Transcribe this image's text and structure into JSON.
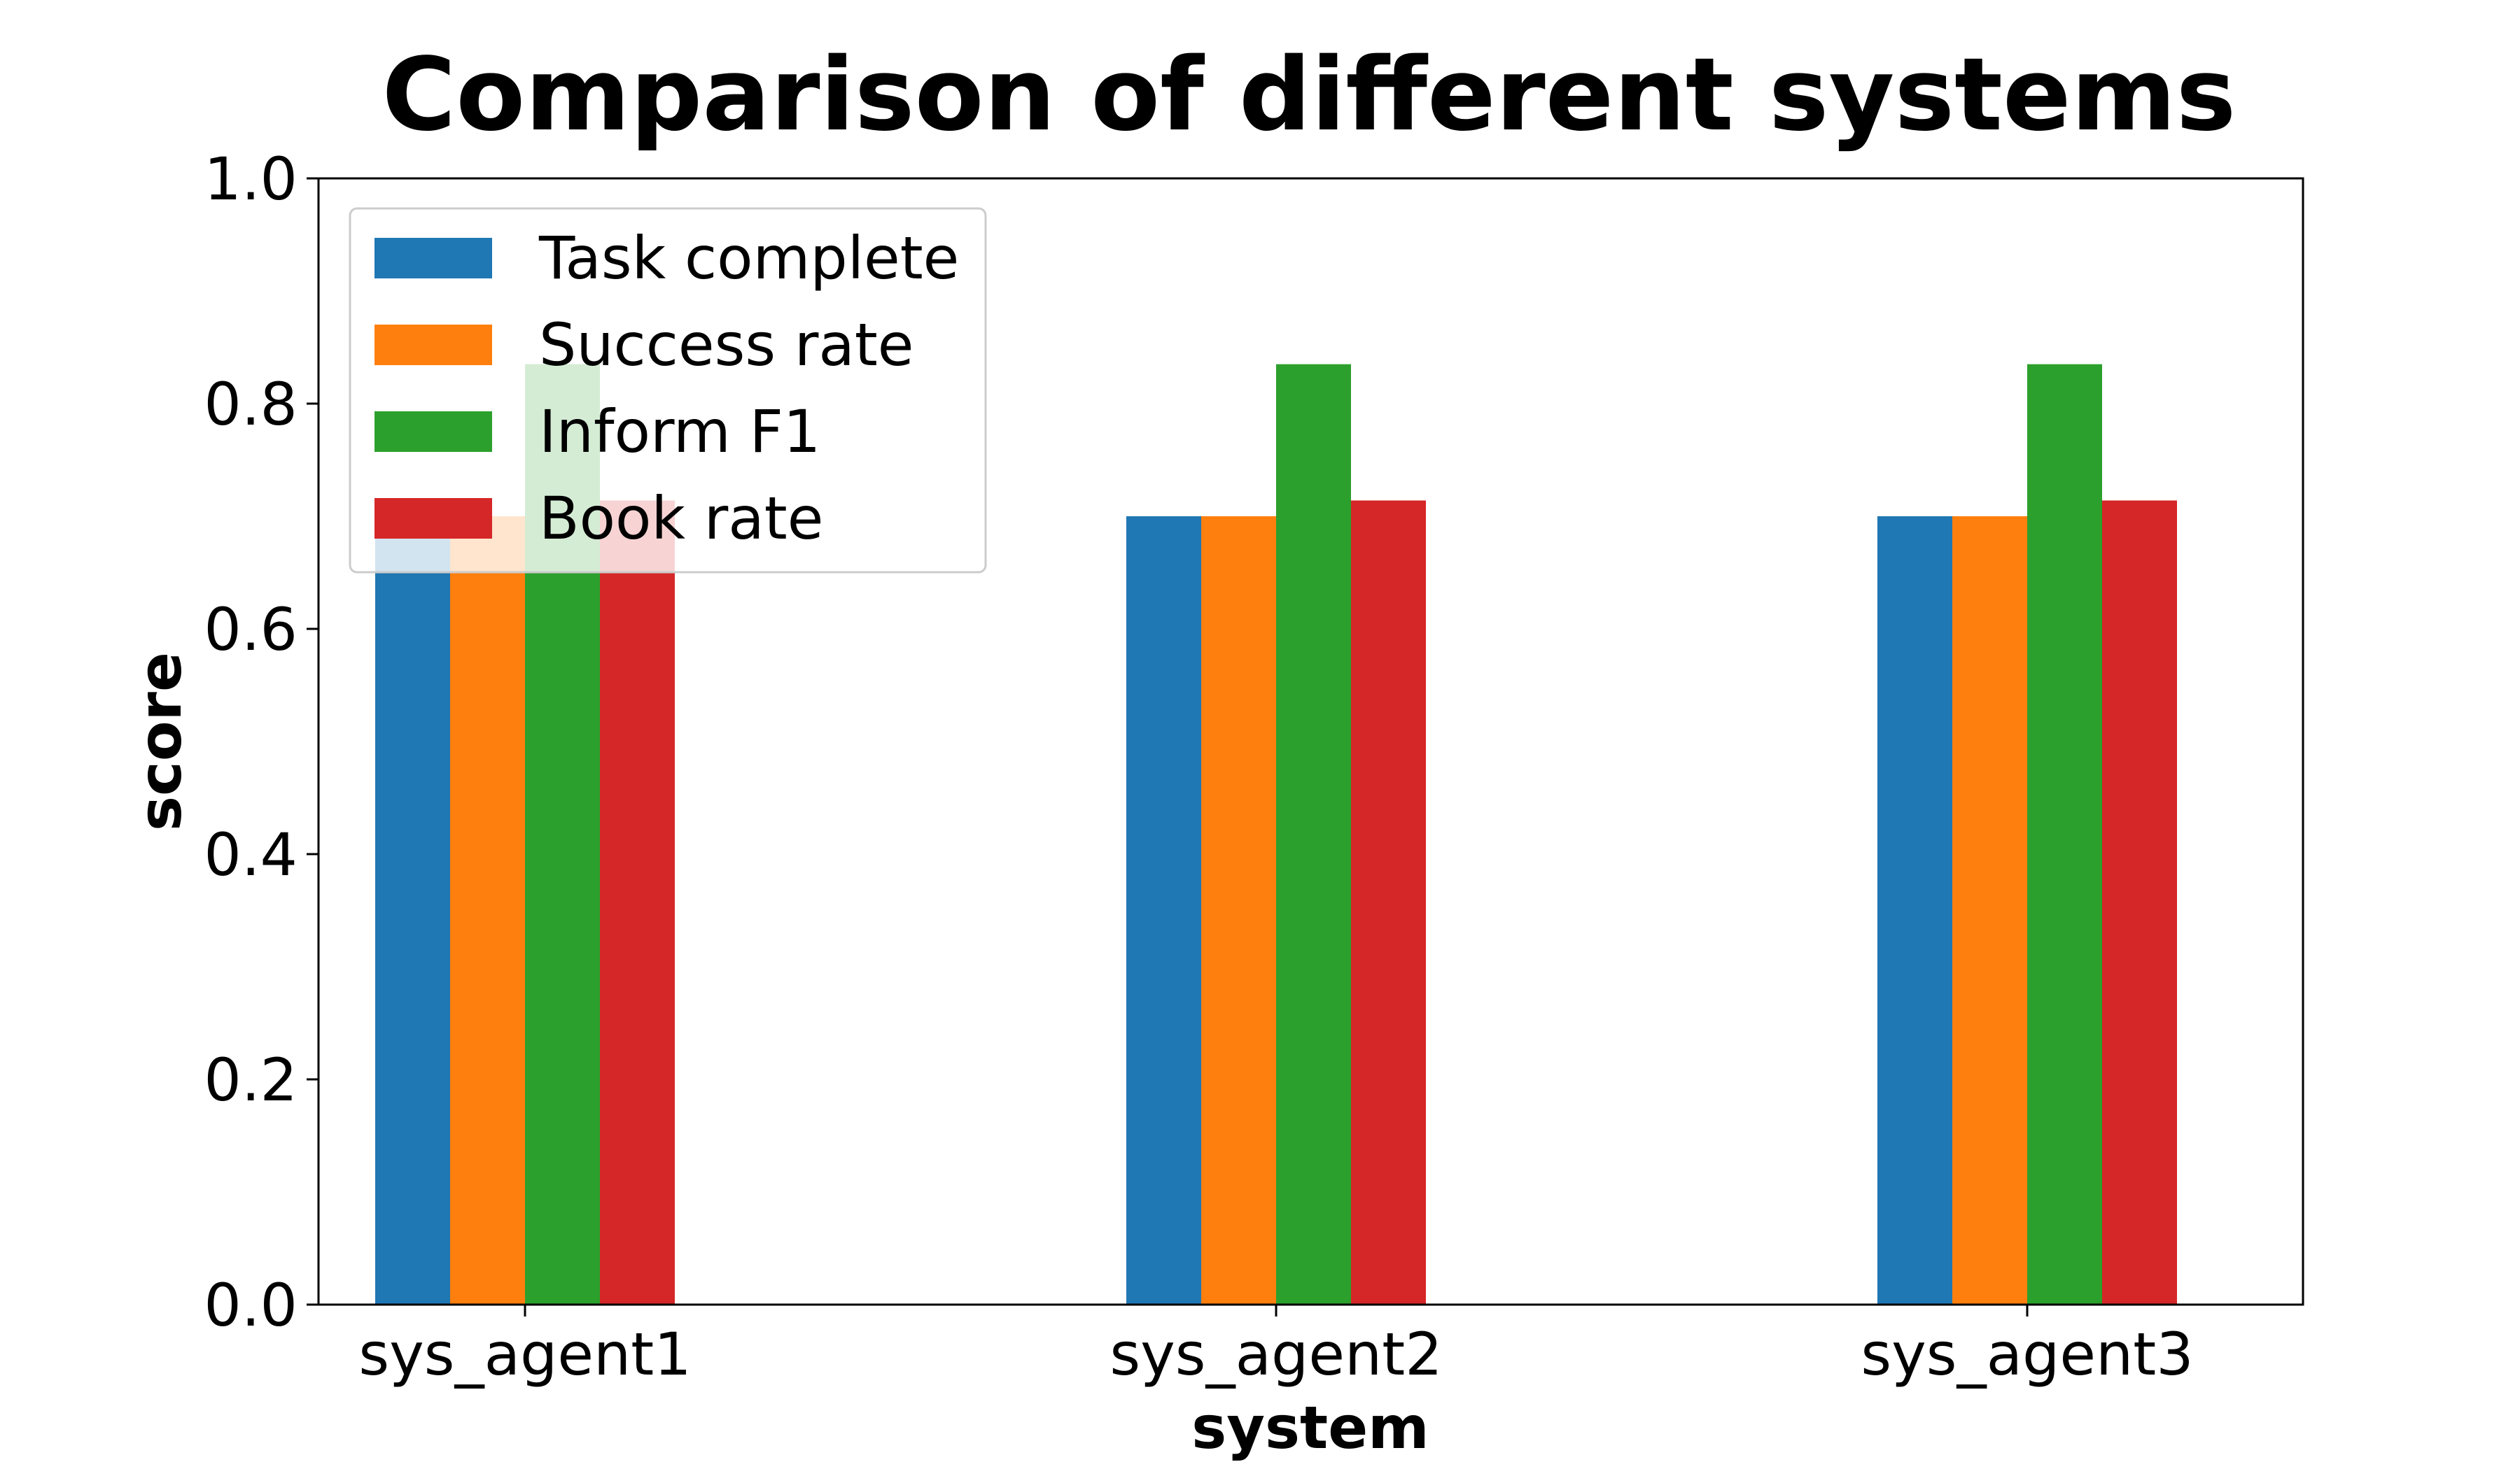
{
  "chart_data": {
    "type": "bar",
    "title": "Comparison of different systems",
    "xlabel": "system",
    "ylabel": "score",
    "categories": [
      "sys_agent1",
      "sys_agent2",
      "sys_agent3"
    ],
    "series": [
      {
        "name": "Task complete",
        "color": "#1f77b4",
        "values": [
          0.7,
          0.7,
          0.7
        ]
      },
      {
        "name": "Success rate",
        "color": "#ff7f0e",
        "values": [
          0.7,
          0.7,
          0.7
        ]
      },
      {
        "name": "Inform F1",
        "color": "#2ca02c",
        "values": [
          0.835,
          0.835,
          0.835
        ]
      },
      {
        "name": "Book rate",
        "color": "#d62728",
        "values": [
          0.714,
          0.714,
          0.714
        ]
      }
    ],
    "ylim": [
      0,
      1.0
    ],
    "yticks": [
      "0.0",
      "0.2",
      "0.4",
      "0.6",
      "0.8",
      "1.0"
    ],
    "grid": false,
    "legend_position": "top-left"
  }
}
